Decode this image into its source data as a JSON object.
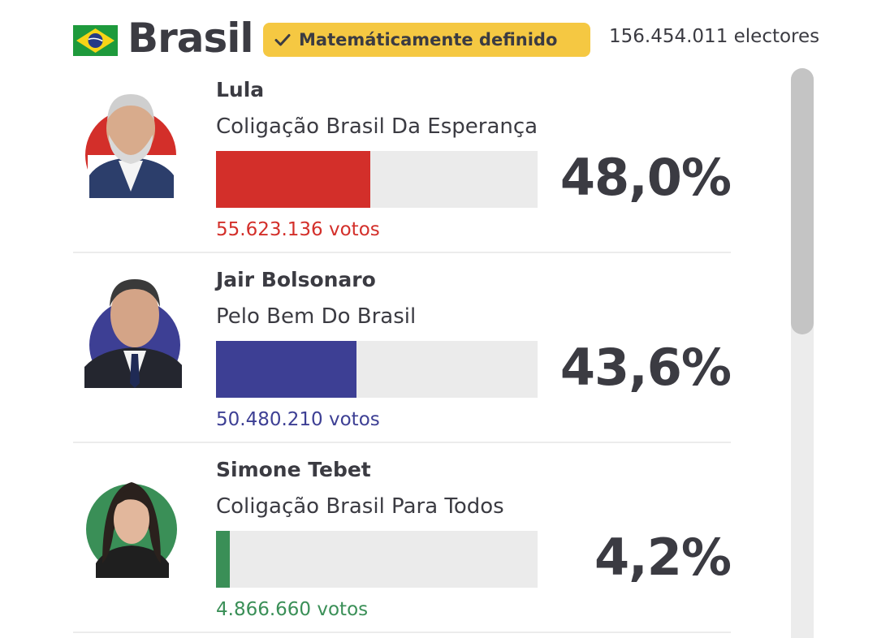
{
  "header": {
    "country": "Brasil",
    "badge_text": "Matemáticamente definido",
    "electors": "156.454.011 electores"
  },
  "candidates": [
    {
      "name": "Lula",
      "party": "Coligação Brasil Da Esperança",
      "votes": "55.623.136 votos",
      "percent_label": "48,0%",
      "percent": 48.0,
      "color": "#d32f2a"
    },
    {
      "name": "Jair Bolsonaro",
      "party": "Pelo Bem Do Brasil",
      "votes": "50.480.210 votos",
      "percent_label": "43,6%",
      "percent": 43.6,
      "color": "#3d3f94"
    },
    {
      "name": "Simone Tebet",
      "party": "Coligação Brasil Para Todos",
      "votes": "4.866.660 votos",
      "percent_label": "4,2%",
      "percent": 4.2,
      "color": "#3a8f57"
    }
  ],
  "colors": {
    "badge": "#f5c842",
    "text": "#3b3b42",
    "track": "#ebebeb"
  },
  "scroll": {
    "position": 0
  }
}
